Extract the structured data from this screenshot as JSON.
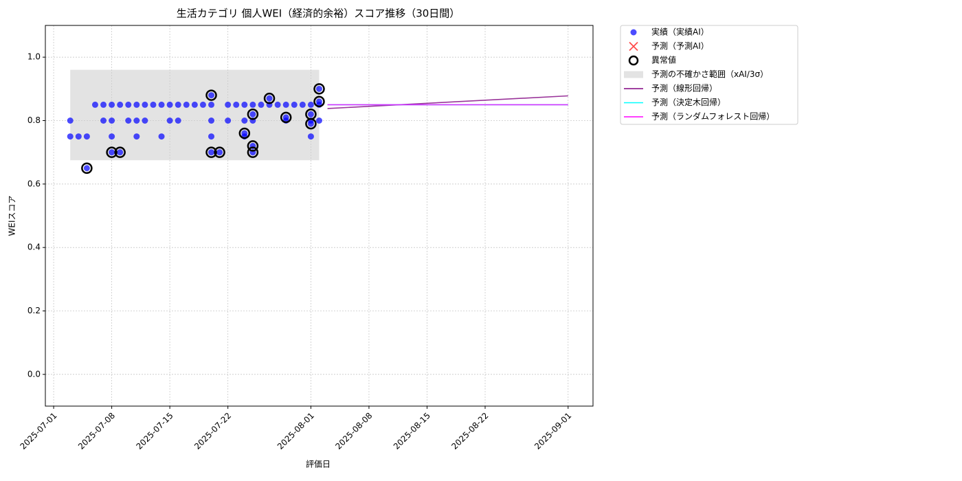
{
  "chart_data": {
    "type": "scatter",
    "title": "生活カテゴリ 個人WEI（経済的余裕）スコア推移（30日間）",
    "x_label": "評価日",
    "y_label": "WEIスコア",
    "xlim": [
      "2025-06-30",
      "2025-09-04"
    ],
    "xticks": [
      "2025-07-01",
      "2025-07-08",
      "2025-07-15",
      "2025-07-22",
      "2025-08-01",
      "2025-08-08",
      "2025-08-15",
      "2025-08-22",
      "2025-09-01"
    ],
    "ylim": [
      -0.1,
      1.1
    ],
    "yticks": [
      {
        "value": 0,
        "label": "0.0"
      },
      0.2,
      0.4,
      0.6,
      0.8,
      {
        "value": 1,
        "label": "1.0"
      }
    ],
    "grid": true,
    "legend": "outside upper right",
    "series": [
      {
        "name": "予測の不確かさ範囲（xAI/3σ）",
        "type": "band",
        "color": "#cccccc",
        "x": [
          "2025-07-03",
          "2025-08-02"
        ],
        "lower": [
          0.675,
          0.675
        ],
        "upper": [
          0.96,
          0.96
        ]
      },
      {
        "name": "予測（線形回帰）",
        "type": "line",
        "color": "#800080",
        "x": [
          "2025-08-03",
          "2025-09-01"
        ],
        "values": [
          0.838,
          0.878
        ]
      },
      {
        "name": "予測（決定木回帰）",
        "type": "line",
        "color": "#00ffff",
        "x": [
          "2025-08-03",
          "2025-09-01"
        ],
        "values": [
          0.85,
          0.85
        ]
      },
      {
        "name": "予測（ランダムフォレスト回帰）",
        "type": "line",
        "color": "#ff00ff",
        "x": [
          "2025-08-03",
          "2025-09-01"
        ],
        "values": [
          0.85,
          0.85
        ]
      },
      {
        "name": "実績（実績AI）",
        "type": "scatter",
        "marker": "o",
        "color": "#0000ff",
        "x": [
          "2025-07-03",
          "2025-07-07",
          "2025-07-08",
          "2025-07-10",
          "2025-07-11",
          "2025-07-12",
          "2025-07-15",
          "2025-07-16",
          "2025-07-20",
          "2025-07-22",
          "2025-07-24",
          "2025-07-25",
          "2025-07-29",
          "2025-08-01",
          "2025-08-02",
          "2025-07-03",
          "2025-07-04",
          "2025-07-05",
          "2025-07-08",
          "2025-07-11",
          "2025-07-14",
          "2025-07-20",
          "2025-07-24",
          "2025-08-01",
          "2025-07-06",
          "2025-07-07",
          "2025-07-08",
          "2025-07-09",
          "2025-07-10",
          "2025-07-11",
          "2025-07-12",
          "2025-07-13",
          "2025-07-14",
          "2025-07-15",
          "2025-07-16",
          "2025-07-17",
          "2025-07-18",
          "2025-07-19",
          "2025-07-20",
          "2025-07-22",
          "2025-07-23",
          "2025-07-24",
          "2025-07-25",
          "2025-07-26",
          "2025-07-27",
          "2025-07-28",
          "2025-07-29",
          "2025-07-30",
          "2025-07-31",
          "2025-08-01",
          "2025-08-02",
          "2025-07-05",
          "2025-07-08",
          "2025-07-09",
          "2025-07-20",
          "2025-07-21",
          "2025-07-20",
          "2025-07-24",
          "2025-07-25",
          "2025-07-25",
          "2025-07-25",
          "2025-07-27",
          "2025-07-29",
          "2025-08-01",
          "2025-08-01",
          "2025-08-02",
          "2025-08-02"
        ],
        "values": [
          0.8,
          0.8,
          0.8,
          0.8,
          0.8,
          0.8,
          0.8,
          0.8,
          0.8,
          0.8,
          0.8,
          0.8,
          0.8,
          0.8,
          0.8,
          0.75,
          0.75,
          0.75,
          0.75,
          0.75,
          0.75,
          0.75,
          0.75,
          0.75,
          0.85,
          0.85,
          0.85,
          0.85,
          0.85,
          0.85,
          0.85,
          0.85,
          0.85,
          0.85,
          0.85,
          0.85,
          0.85,
          0.85,
          0.85,
          0.85,
          0.85,
          0.85,
          0.85,
          0.85,
          0.85,
          0.85,
          0.85,
          0.85,
          0.85,
          0.85,
          0.85,
          0.65,
          0.7,
          0.7,
          0.7,
          0.7,
          0.88,
          0.76,
          0.82,
          0.7,
          0.72,
          0.87,
          0.81,
          0.79,
          0.82,
          0.9,
          0.86
        ]
      },
      {
        "name": "予測（予測AI）",
        "type": "scatter",
        "marker": "x",
        "color": "#ff0000",
        "x": [],
        "values": []
      },
      {
        "name": "異常値",
        "type": "scatter",
        "marker": "ring",
        "color": "#000000",
        "x": [
          "2025-07-05",
          "2025-07-08",
          "2025-07-09",
          "2025-07-20",
          "2025-07-21",
          "2025-07-20",
          "2025-07-24",
          "2025-07-25",
          "2025-07-25",
          "2025-07-25",
          "2025-07-27",
          "2025-07-29",
          "2025-08-01",
          "2025-08-01",
          "2025-08-02",
          "2025-08-02"
        ],
        "values": [
          0.65,
          0.7,
          0.7,
          0.7,
          0.7,
          0.88,
          0.76,
          0.82,
          0.7,
          0.72,
          0.87,
          0.81,
          0.79,
          0.82,
          0.9,
          0.86
        ]
      }
    ],
    "legend_order": [
      4,
      5,
      6,
      0,
      1,
      2,
      3
    ]
  }
}
